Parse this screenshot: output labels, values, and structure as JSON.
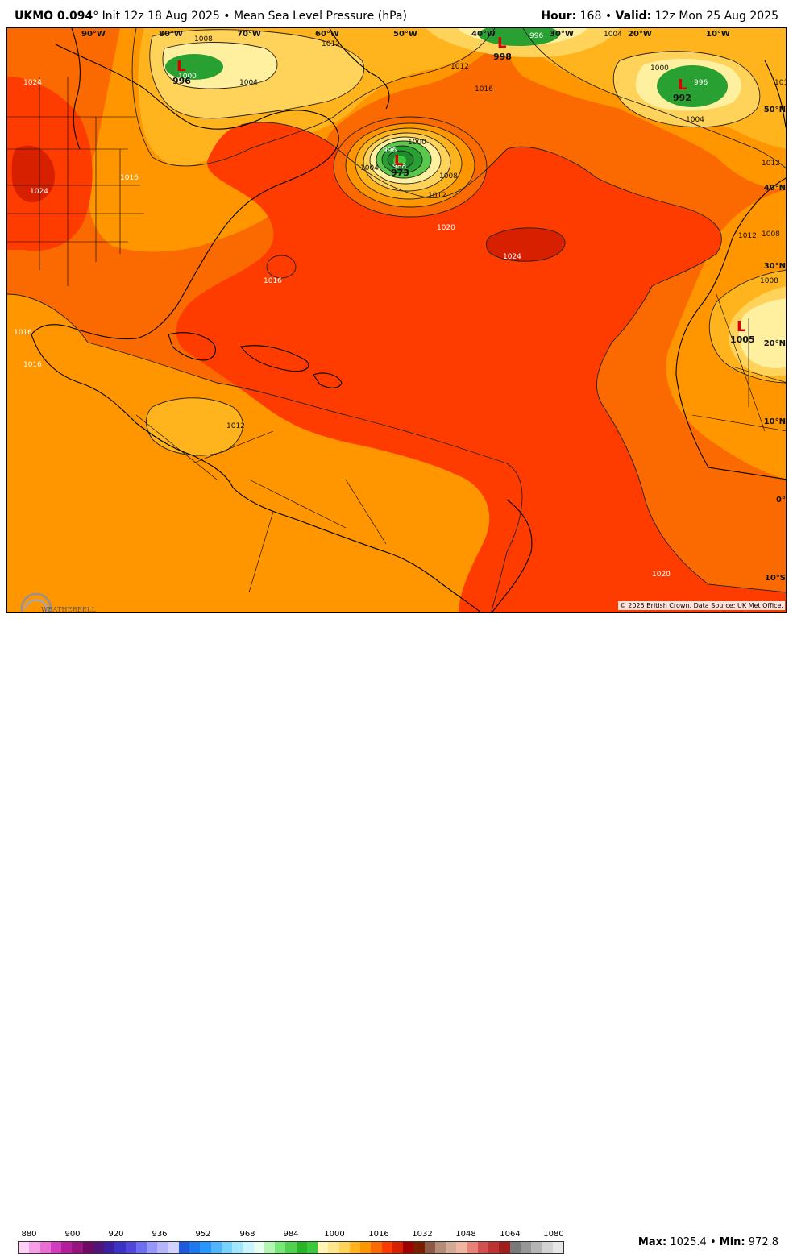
{
  "header": {
    "model": "UKMO 0.094",
    "degree": "°",
    "init": "Init 12z 18 Aug 2025",
    "bullet": "•",
    "field": "Mean Sea Level Pressure (hPa)",
    "hour_label": "Hour:",
    "hour_value": "168",
    "valid_label": "Valid:",
    "valid_value": "12z Mon 25 Aug 2025"
  },
  "map": {
    "lon_labels": [
      "90°W",
      "80°W",
      "70°W",
      "60°W",
      "50°W",
      "40°W",
      "30°W",
      "20°W",
      "10°W"
    ],
    "lat_labels": [
      "50°N",
      "40°N",
      "30°N",
      "20°N",
      "10°N",
      "0°",
      "10°S"
    ],
    "lows": [
      {
        "symbol": "L",
        "value": "996"
      },
      {
        "symbol": "L",
        "value": "998"
      },
      {
        "symbol": "L",
        "value": "992"
      },
      {
        "symbol": "L",
        "value": "973"
      },
      {
        "symbol": "L",
        "value": "1005"
      }
    ],
    "isobar_labels": [
      "1008",
      "1012",
      "1004",
      "1012",
      "1016",
      "1004",
      "1000",
      "996",
      "1000",
      "996",
      "1004",
      "1008",
      "1012",
      "1024",
      "1016",
      "1024",
      "1004",
      "1000",
      "996",
      "988",
      "1008",
      "1012",
      "1020",
      "1016",
      "1024",
      "1016",
      "1016",
      "1012",
      "1008",
      "1012",
      "1020",
      "1012"
    ],
    "colors": {
      "p1024": "#d62000",
      "p1020": "#ff3c00",
      "p1016": "#fb6a00",
      "p1012": "#ff9600",
      "p1008": "#ffb41e",
      "p1004": "#ffd25a",
      "p1000": "#fff0a0",
      "p996": "#5ac84a",
      "p992": "#28a032",
      "p984": "#1e8c28"
    }
  },
  "colorbar": {
    "ticks": [
      "880",
      "900",
      "920",
      "936",
      "952",
      "968",
      "984",
      "1000",
      "1016",
      "1032",
      "1048",
      "1064",
      "1080"
    ],
    "colors": [
      "#ffd0f5",
      "#f5a0e6",
      "#eb6ed2",
      "#d23cbe",
      "#b41e9b",
      "#96147d",
      "#6e0a64",
      "#501478",
      "#3c1ea0",
      "#3c32c8",
      "#5046dc",
      "#6e6ef0",
      "#9696ff",
      "#b4b4ff",
      "#d2d2ff",
      "#1e5adc",
      "#1e78f0",
      "#2896ff",
      "#50b4ff",
      "#78d2ff",
      "#a0e6ff",
      "#c8f5ff",
      "#e6fff0",
      "#b4f5b4",
      "#78e678",
      "#50d250",
      "#28b428",
      "#3cc83c",
      "#fff5b4",
      "#ffe68c",
      "#ffd25a",
      "#ffb41e",
      "#ff9600",
      "#fb6a00",
      "#ff3c00",
      "#d62000",
      "#a00000",
      "#7a1e00",
      "#8c5a46",
      "#b48c78",
      "#d2aa96",
      "#f0b4a0",
      "#e68278",
      "#d25050",
      "#be3232",
      "#a01e1e",
      "#787878",
      "#969696",
      "#b4b4b4",
      "#d2d2d2",
      "#e6e6e6"
    ]
  },
  "stats": {
    "max_label": "Max:",
    "max_value": "1025.4",
    "sep": "•",
    "min_label": "Min:",
    "min_value": "972.8"
  },
  "credit": "© 2025 British Crown. Data Source: UK Met Office.",
  "logo_text": "WEATHERBELL"
}
